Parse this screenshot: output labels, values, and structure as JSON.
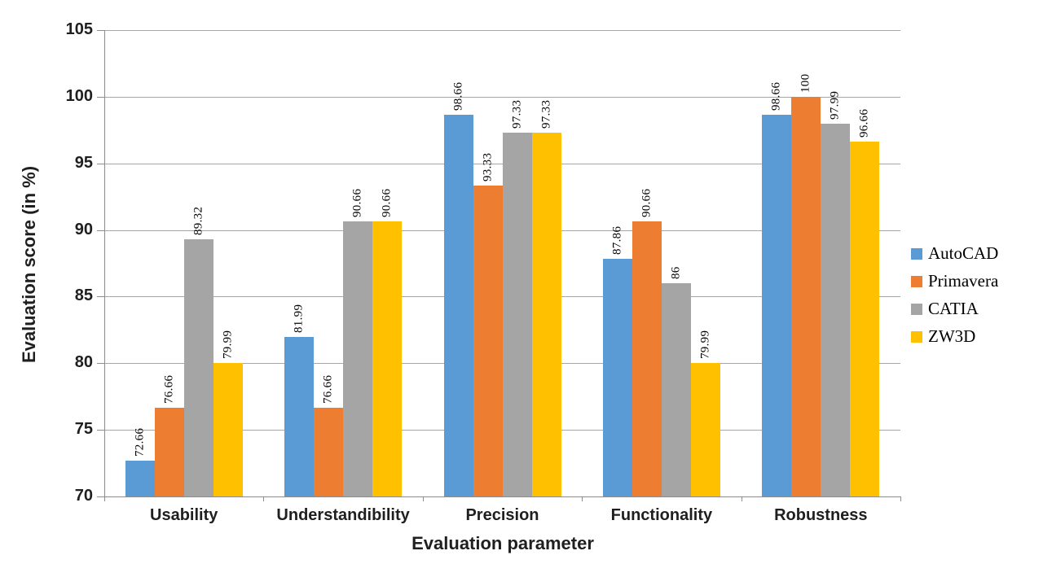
{
  "chart_data": {
    "type": "bar",
    "title": "",
    "xlabel": "Evaluation parameter",
    "ylabel": "Evaluation score (in %)",
    "categories": [
      "Usability",
      "Understandibility",
      "Precision",
      "Functionality",
      "Robustness"
    ],
    "series": [
      {
        "name": "AutoCAD",
        "color": "#5B9BD5",
        "values": [
          72.66,
          81.99,
          98.66,
          87.86,
          98.66
        ],
        "labels": [
          "72.66",
          "81.99",
          "98.66",
          "87.86",
          "98.66"
        ]
      },
      {
        "name": "Primavera",
        "color": "#ED7D31",
        "values": [
          76.66,
          76.66,
          93.33,
          90.66,
          100
        ],
        "labels": [
          "76.66",
          "76.66",
          "93.33",
          "90.66",
          "100"
        ]
      },
      {
        "name": "CATIA",
        "color": "#A5A5A5",
        "values": [
          89.32,
          90.66,
          97.33,
          86,
          97.99
        ],
        "labels": [
          "89.32",
          "90.66",
          "97.33",
          "86",
          "97.99"
        ]
      },
      {
        "name": "ZW3D",
        "color": "#FFC000",
        "values": [
          79.99,
          90.66,
          97.33,
          79.99,
          96.66
        ],
        "labels": [
          "79.99",
          "90.66",
          "97.33",
          "79.99",
          "96.66"
        ]
      }
    ],
    "ylim": [
      70,
      105
    ],
    "yticks": [
      70,
      75,
      80,
      85,
      90,
      95,
      100,
      105
    ],
    "grid": true,
    "legend_position": "right",
    "data_label_rotation": -90
  },
  "style_colors": {
    "background": "#ffffff",
    "gridline": "#a6a6a6",
    "axis_line": "#8c8c8c",
    "tick_text": "#1f1f1f",
    "data_label_text": "#000000"
  }
}
